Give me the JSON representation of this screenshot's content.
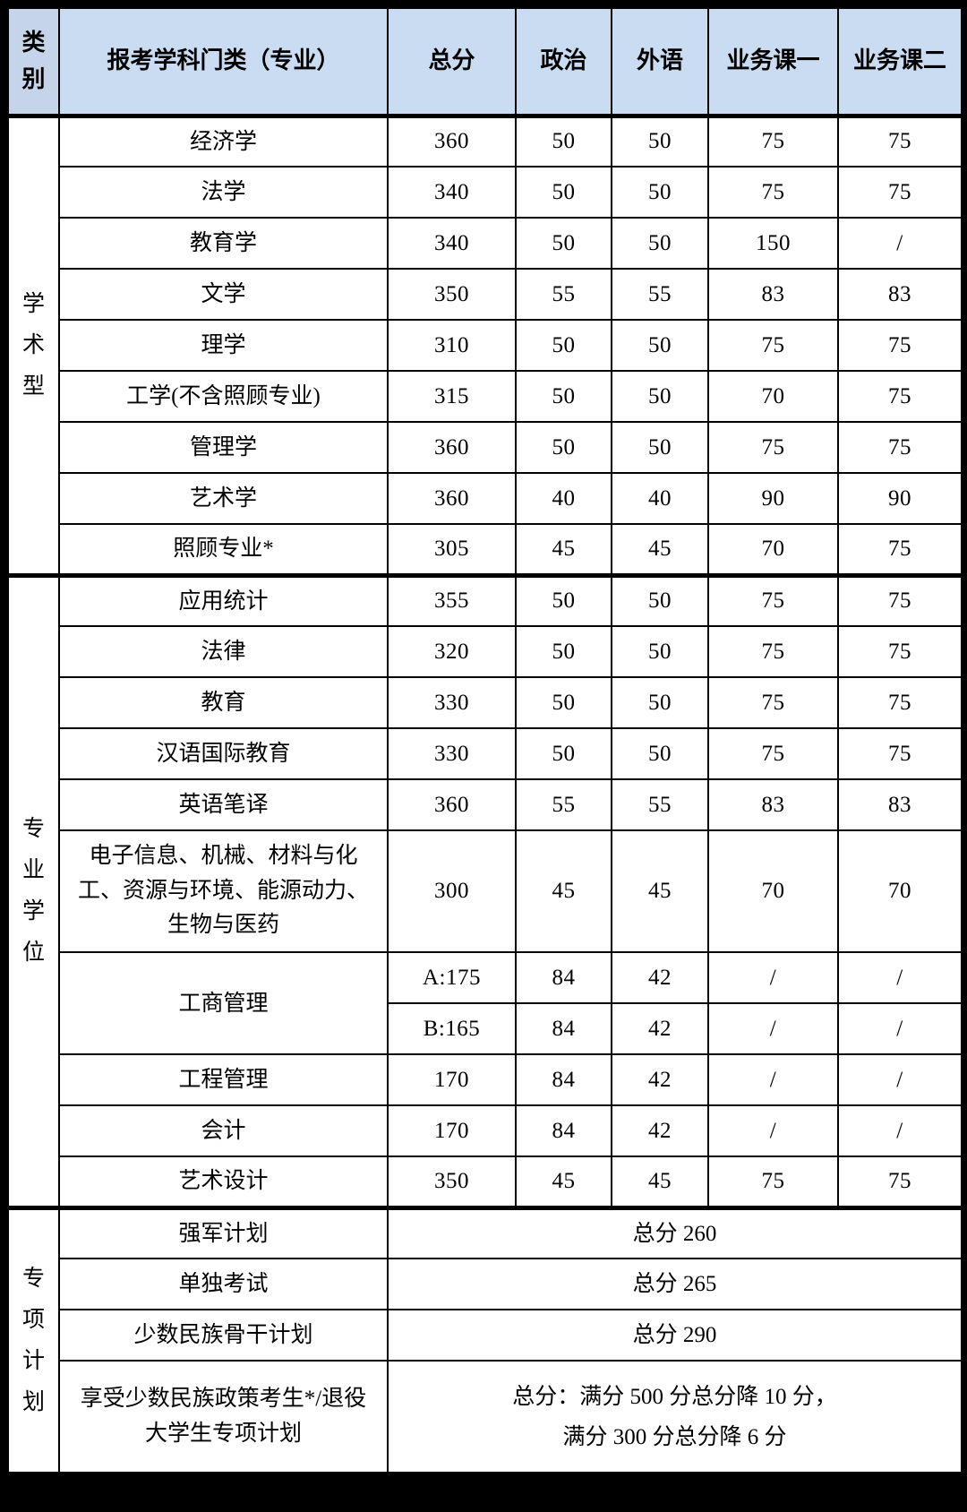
{
  "page": {
    "background": "#000000"
  },
  "table": {
    "colors": {
      "header_bg": "#c9dcf2",
      "category_header_bg": "#c5d4e8",
      "border": "#000000",
      "cell_bg": "#ffffff",
      "text": "#000000"
    },
    "header": {
      "category_label": "类别",
      "columns": [
        "报考学科门类（专业）",
        "总分",
        "政治",
        "外语",
        "业务课一",
        "业务课二"
      ]
    },
    "sections": [
      {
        "label": "学术型",
        "rows": [
          {
            "name": "经济学",
            "values": [
              "360",
              "50",
              "50",
              "75",
              "75"
            ]
          },
          {
            "name": "法学",
            "values": [
              "340",
              "50",
              "50",
              "75",
              "75"
            ]
          },
          {
            "name": "教育学",
            "values": [
              "340",
              "50",
              "50",
              "150",
              "/"
            ]
          },
          {
            "name": "文学",
            "values": [
              "350",
              "55",
              "55",
              "83",
              "83"
            ]
          },
          {
            "name": "理学",
            "values": [
              "310",
              "50",
              "50",
              "75",
              "75"
            ]
          },
          {
            "name": "工学(不含照顾专业)",
            "values": [
              "315",
              "50",
              "50",
              "70",
              "75"
            ]
          },
          {
            "name": "管理学",
            "values": [
              "360",
              "50",
              "50",
              "75",
              "75"
            ]
          },
          {
            "name": "艺术学",
            "values": [
              "360",
              "40",
              "40",
              "90",
              "90"
            ]
          },
          {
            "name": "照顾专业*",
            "values": [
              "305",
              "45",
              "45",
              "70",
              "75"
            ]
          }
        ]
      },
      {
        "label": "专业学位",
        "rows": [
          {
            "name": "应用统计",
            "values": [
              "355",
              "50",
              "50",
              "75",
              "75"
            ]
          },
          {
            "name": "法律",
            "values": [
              "320",
              "50",
              "50",
              "75",
              "75"
            ]
          },
          {
            "name": "教育",
            "values": [
              "330",
              "50",
              "50",
              "75",
              "75"
            ]
          },
          {
            "name": "汉语国际教育",
            "values": [
              "330",
              "50",
              "50",
              "75",
              "75"
            ]
          },
          {
            "name": "英语笔译",
            "values": [
              "360",
              "55",
              "55",
              "83",
              "83"
            ]
          },
          {
            "name": "电子信息、机械、材料与化工、资源与环境、能源动力、生物与医药",
            "values": [
              "300",
              "45",
              "45",
              "70",
              "70"
            ],
            "tall": true
          },
          {
            "name": "工商管理",
            "subrows": [
              [
                "A:175",
                "84",
                "42",
                "/",
                "/"
              ],
              [
                "B:165",
                "84",
                "42",
                "/",
                "/"
              ]
            ]
          },
          {
            "name": "工程管理",
            "values": [
              "170",
              "84",
              "42",
              "/",
              "/"
            ]
          },
          {
            "name": "会计",
            "values": [
              "170",
              "84",
              "42",
              "/",
              "/"
            ]
          },
          {
            "name": "艺术设计",
            "values": [
              "350",
              "45",
              "45",
              "75",
              "75"
            ]
          }
        ]
      },
      {
        "label": "专项计划",
        "rows": [
          {
            "name": "强军计划",
            "merged": [
              "总分 260"
            ]
          },
          {
            "name": "单独考试",
            "merged": [
              "总分 265"
            ]
          },
          {
            "name": "少数民族骨干计划",
            "merged": [
              "总分 290"
            ]
          },
          {
            "name": "享受少数民族政策考生*/退役大学生专项计划",
            "merged": [
              "总分：满分 500 分总分降 10 分，",
              "满分 300 分总分降 6 分"
            ],
            "tall2": true
          }
        ]
      }
    ]
  }
}
